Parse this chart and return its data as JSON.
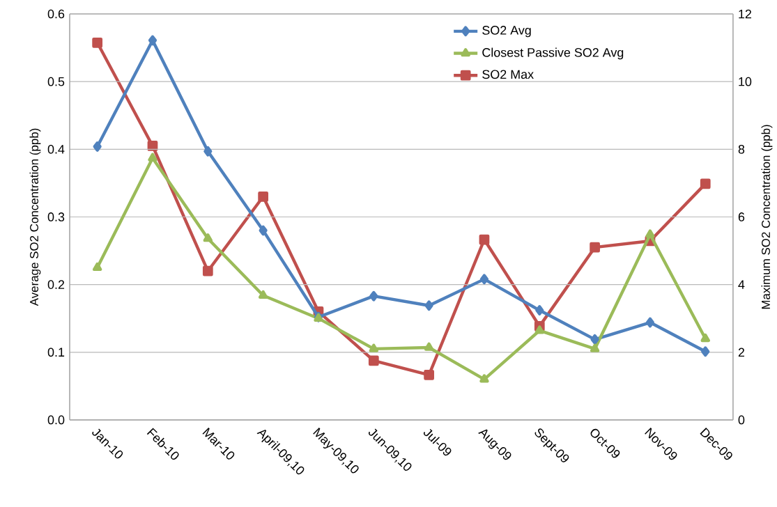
{
  "chart_data": {
    "type": "line",
    "categories": [
      "Jan-10",
      "Feb-10",
      "Mar-10",
      "April-09,10",
      "May-09,10",
      "Jun-09,10",
      "Jul-09",
      "Aug-09",
      "Sept-09",
      "Oct-09",
      "Nov-09",
      "Dec-09"
    ],
    "series": [
      {
        "name": "SO2 Avg",
        "color": "#4f81bd",
        "marker": "diamond",
        "values": [
          0.404,
          0.561,
          0.397,
          0.28,
          0.152,
          0.183,
          0.169,
          0.208,
          0.162,
          0.119,
          0.144,
          0.101
        ]
      },
      {
        "name": "Closest Passive SO2 Avg",
        "color": "#9bbb59",
        "marker": "triangle",
        "values": [
          0.225,
          0.387,
          0.268,
          0.184,
          0.15,
          0.105,
          0.107,
          0.06,
          0.132,
          0.105,
          0.274,
          0.12
        ]
      },
      {
        "name": "SO2 Max",
        "color": "#c0504d",
        "marker": "square",
        "axis": "y2",
        "values": [
          11.15,
          8.1,
          4.4,
          6.6,
          3.2,
          1.75,
          1.33,
          5.33,
          2.77,
          5.1,
          5.29,
          6.98
        ]
      }
    ],
    "ylabel": "Average SO2 Concentration (ppb)",
    "y2label": "Maximum SO2 Concentration (ppb)",
    "ylim": [
      0,
      0.6
    ],
    "yticks": [
      {
        "value": 0,
        "label": "0.0"
      },
      0.1,
      0.2,
      0.3,
      0.4,
      0.5,
      0.6
    ],
    "y2lim": [
      0,
      12
    ],
    "y2ticks": [
      0,
      2,
      4,
      6,
      8,
      10,
      12
    ],
    "grid": "y",
    "legend": "top right"
  }
}
